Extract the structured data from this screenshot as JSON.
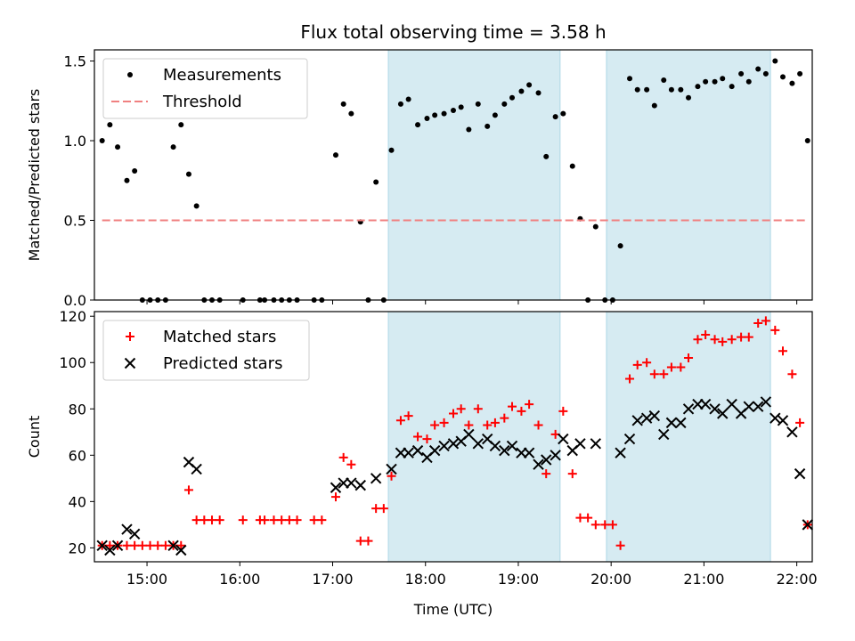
{
  "title": "Flux total observing time = 3.58 h",
  "chart_data": [
    {
      "type": "scatter",
      "ylabel": "Matched/Predicted stars",
      "ylim": [
        0,
        1.57
      ],
      "yticks": [
        0.0,
        0.5,
        1.0,
        1.5
      ],
      "ytick_labels": [
        "0.0",
        "0.5",
        "1.0",
        "1.5"
      ],
      "legend_position": "top-left",
      "shaded_intervals": [
        [
          "17:36",
          "19:27"
        ],
        [
          "19:57",
          "21:43"
        ]
      ],
      "series": [
        {
          "name": "Measurements",
          "marker": "dot",
          "color": "#000000",
          "points": [
            [
              "14:31",
              1.0
            ],
            [
              "14:36",
              1.1
            ],
            [
              "14:41",
              0.96
            ],
            [
              "14:47",
              0.75
            ],
            [
              "14:52",
              0.81
            ],
            [
              "14:57",
              0.0
            ],
            [
              "15:02",
              0.0
            ],
            [
              "15:07",
              0.0
            ],
            [
              "15:12",
              0.0
            ],
            [
              "15:17",
              0.96
            ],
            [
              "15:22",
              1.1
            ],
            [
              "15:27",
              0.79
            ],
            [
              "15:32",
              0.59
            ],
            [
              "15:37",
              0.0
            ],
            [
              "15:42",
              0.0
            ],
            [
              "15:47",
              0.0
            ],
            [
              "16:02",
              0.0
            ],
            [
              "16:13",
              0.0
            ],
            [
              "16:16",
              0.0
            ],
            [
              "16:22",
              0.0
            ],
            [
              "16:27",
              0.0
            ],
            [
              "16:32",
              0.0
            ],
            [
              "16:37",
              0.0
            ],
            [
              "16:48",
              0.0
            ],
            [
              "16:53",
              0.0
            ],
            [
              "17:02",
              0.91
            ],
            [
              "17:07",
              1.23
            ],
            [
              "17:12",
              1.17
            ],
            [
              "17:18",
              0.49
            ],
            [
              "17:23",
              0.0
            ],
            [
              "17:28",
              0.74
            ],
            [
              "17:33",
              0.0
            ],
            [
              "17:38",
              0.94
            ],
            [
              "17:44",
              1.23
            ],
            [
              "17:49",
              1.26
            ],
            [
              "17:55",
              1.1
            ],
            [
              "18:01",
              1.14
            ],
            [
              "18:06",
              1.16
            ],
            [
              "18:12",
              1.17
            ],
            [
              "18:18",
              1.19
            ],
            [
              "18:23",
              1.21
            ],
            [
              "18:28",
              1.07
            ],
            [
              "18:34",
              1.23
            ],
            [
              "18:40",
              1.09
            ],
            [
              "18:45",
              1.16
            ],
            [
              "18:51",
              1.23
            ],
            [
              "18:56",
              1.27
            ],
            [
              "19:02",
              1.31
            ],
            [
              "19:07",
              1.35
            ],
            [
              "19:13",
              1.3
            ],
            [
              "19:18",
              0.9
            ],
            [
              "19:24",
              1.15
            ],
            [
              "19:29",
              1.17
            ],
            [
              "19:35",
              0.84
            ],
            [
              "19:40",
              0.51
            ],
            [
              "19:45",
              0.0
            ],
            [
              "19:50",
              0.46
            ],
            [
              "19:56",
              0.0
            ],
            [
              "20:01",
              0.0
            ],
            [
              "20:06",
              0.34
            ],
            [
              "20:12",
              1.39
            ],
            [
              "20:17",
              1.32
            ],
            [
              "20:23",
              1.32
            ],
            [
              "20:28",
              1.22
            ],
            [
              "20:34",
              1.38
            ],
            [
              "20:39",
              1.32
            ],
            [
              "20:45",
              1.32
            ],
            [
              "20:50",
              1.27
            ],
            [
              "20:56",
              1.34
            ],
            [
              "21:01",
              1.37
            ],
            [
              "21:07",
              1.37
            ],
            [
              "21:12",
              1.39
            ],
            [
              "21:18",
              1.34
            ],
            [
              "21:24",
              1.42
            ],
            [
              "21:29",
              1.37
            ],
            [
              "21:35",
              1.45
            ],
            [
              "21:40",
              1.42
            ],
            [
              "21:46",
              1.5
            ],
            [
              "21:51",
              1.4
            ],
            [
              "21:57",
              1.36
            ],
            [
              "22:02",
              1.42
            ],
            [
              "22:07",
              1.0
            ]
          ]
        },
        {
          "name": "Threshold",
          "marker": "dashed-line",
          "color": "#f08080",
          "points": [
            [
              "14:31",
              0.5
            ],
            [
              "22:07",
              0.5
            ]
          ]
        }
      ]
    },
    {
      "type": "scatter",
      "xlabel": "Time (UTC)",
      "ylabel": "Count",
      "xlim": [
        "14:26",
        "22:10"
      ],
      "xticks": [
        "15:00",
        "16:00",
        "17:00",
        "18:00",
        "19:00",
        "20:00",
        "21:00",
        "22:00"
      ],
      "ylim": [
        14,
        122
      ],
      "yticks": [
        20,
        40,
        60,
        80,
        100,
        120
      ],
      "legend_position": "top-left",
      "shaded_intervals": [
        [
          "17:36",
          "19:27"
        ],
        [
          "19:57",
          "21:43"
        ]
      ],
      "series": [
        {
          "name": "Matched stars",
          "marker": "plus",
          "color": "#ff0000",
          "points": [
            [
              "14:31",
              21
            ],
            [
              "14:36",
              21
            ],
            [
              "14:41",
              21
            ],
            [
              "14:47",
              21
            ],
            [
              "14:52",
              21
            ],
            [
              "14:57",
              21
            ],
            [
              "15:02",
              21
            ],
            [
              "15:07",
              21
            ],
            [
              "15:12",
              21
            ],
            [
              "15:17",
              21
            ],
            [
              "15:22",
              21
            ],
            [
              "15:27",
              45
            ],
            [
              "15:32",
              32
            ],
            [
              "15:37",
              32
            ],
            [
              "15:42",
              32
            ],
            [
              "15:47",
              32
            ],
            [
              "16:02",
              32
            ],
            [
              "16:13",
              32
            ],
            [
              "16:16",
              32
            ],
            [
              "16:22",
              32
            ],
            [
              "16:27",
              32
            ],
            [
              "16:32",
              32
            ],
            [
              "16:37",
              32
            ],
            [
              "16:48",
              32
            ],
            [
              "16:53",
              32
            ],
            [
              "17:02",
              42
            ],
            [
              "17:07",
              59
            ],
            [
              "17:12",
              56
            ],
            [
              "17:18",
              23
            ],
            [
              "17:23",
              23
            ],
            [
              "17:28",
              37
            ],
            [
              "17:33",
              37
            ],
            [
              "17:38",
              51
            ],
            [
              "17:44",
              75
            ],
            [
              "17:49",
              77
            ],
            [
              "17:55",
              68
            ],
            [
              "18:01",
              67
            ],
            [
              "18:06",
              73
            ],
            [
              "18:12",
              74
            ],
            [
              "18:18",
              78
            ],
            [
              "18:23",
              80
            ],
            [
              "18:28",
              73
            ],
            [
              "18:34",
              80
            ],
            [
              "18:40",
              73
            ],
            [
              "18:45",
              74
            ],
            [
              "18:51",
              76
            ],
            [
              "18:56",
              81
            ],
            [
              "19:02",
              79
            ],
            [
              "19:07",
              82
            ],
            [
              "19:13",
              73
            ],
            [
              "19:18",
              52
            ],
            [
              "19:24",
              69
            ],
            [
              "19:29",
              79
            ],
            [
              "19:35",
              52
            ],
            [
              "19:40",
              33
            ],
            [
              "19:45",
              33
            ],
            [
              "19:50",
              30
            ],
            [
              "19:56",
              30
            ],
            [
              "20:01",
              30
            ],
            [
              "20:06",
              21
            ],
            [
              "20:12",
              93
            ],
            [
              "20:17",
              99
            ],
            [
              "20:23",
              100
            ],
            [
              "20:28",
              95
            ],
            [
              "20:34",
              95
            ],
            [
              "20:39",
              98
            ],
            [
              "20:45",
              98
            ],
            [
              "20:50",
              102
            ],
            [
              "20:56",
              110
            ],
            [
              "21:01",
              112
            ],
            [
              "21:07",
              110
            ],
            [
              "21:12",
              109
            ],
            [
              "21:18",
              110
            ],
            [
              "21:24",
              111
            ],
            [
              "21:29",
              111
            ],
            [
              "21:35",
              117
            ],
            [
              "21:40",
              118
            ],
            [
              "21:46",
              114
            ],
            [
              "21:51",
              105
            ],
            [
              "21:57",
              95
            ],
            [
              "22:02",
              74
            ],
            [
              "22:07",
              30
            ]
          ]
        },
        {
          "name": "Predicted stars",
          "marker": "x",
          "color": "#000000",
          "points": [
            [
              "14:31",
              21
            ],
            [
              "14:36",
              19
            ],
            [
              "14:41",
              21
            ],
            [
              "14:47",
              28
            ],
            [
              "14:52",
              26
            ],
            [
              "15:17",
              21
            ],
            [
              "15:22",
              19
            ],
            [
              "15:27",
              57
            ],
            [
              "15:32",
              54
            ],
            [
              "17:02",
              46
            ],
            [
              "17:07",
              48
            ],
            [
              "17:12",
              48
            ],
            [
              "17:18",
              47
            ],
            [
              "17:28",
              50
            ],
            [
              "17:38",
              54
            ],
            [
              "17:44",
              61
            ],
            [
              "17:49",
              61
            ],
            [
              "17:55",
              62
            ],
            [
              "18:01",
              59
            ],
            [
              "18:06",
              62
            ],
            [
              "18:12",
              64
            ],
            [
              "18:18",
              65
            ],
            [
              "18:23",
              66
            ],
            [
              "18:28",
              69
            ],
            [
              "18:34",
              65
            ],
            [
              "18:40",
              67
            ],
            [
              "18:45",
              64
            ],
            [
              "18:51",
              62
            ],
            [
              "18:56",
              64
            ],
            [
              "19:02",
              61
            ],
            [
              "19:07",
              61
            ],
            [
              "19:13",
              56
            ],
            [
              "19:18",
              58
            ],
            [
              "19:24",
              60
            ],
            [
              "19:29",
              67
            ],
            [
              "19:35",
              62
            ],
            [
              "19:40",
              65
            ],
            [
              "19:50",
              65
            ],
            [
              "20:06",
              61
            ],
            [
              "20:12",
              67
            ],
            [
              "20:17",
              75
            ],
            [
              "20:23",
              76
            ],
            [
              "20:28",
              77
            ],
            [
              "20:34",
              69
            ],
            [
              "20:39",
              74
            ],
            [
              "20:45",
              74
            ],
            [
              "20:50",
              80
            ],
            [
              "20:56",
              82
            ],
            [
              "21:01",
              82
            ],
            [
              "21:07",
              80
            ],
            [
              "21:12",
              78
            ],
            [
              "21:18",
              82
            ],
            [
              "21:24",
              78
            ],
            [
              "21:29",
              81
            ],
            [
              "21:35",
              81
            ],
            [
              "21:40",
              83
            ],
            [
              "21:46",
              76
            ],
            [
              "21:51",
              75
            ],
            [
              "21:57",
              70
            ],
            [
              "22:02",
              52
            ],
            [
              "22:07",
              30
            ]
          ]
        }
      ]
    }
  ]
}
